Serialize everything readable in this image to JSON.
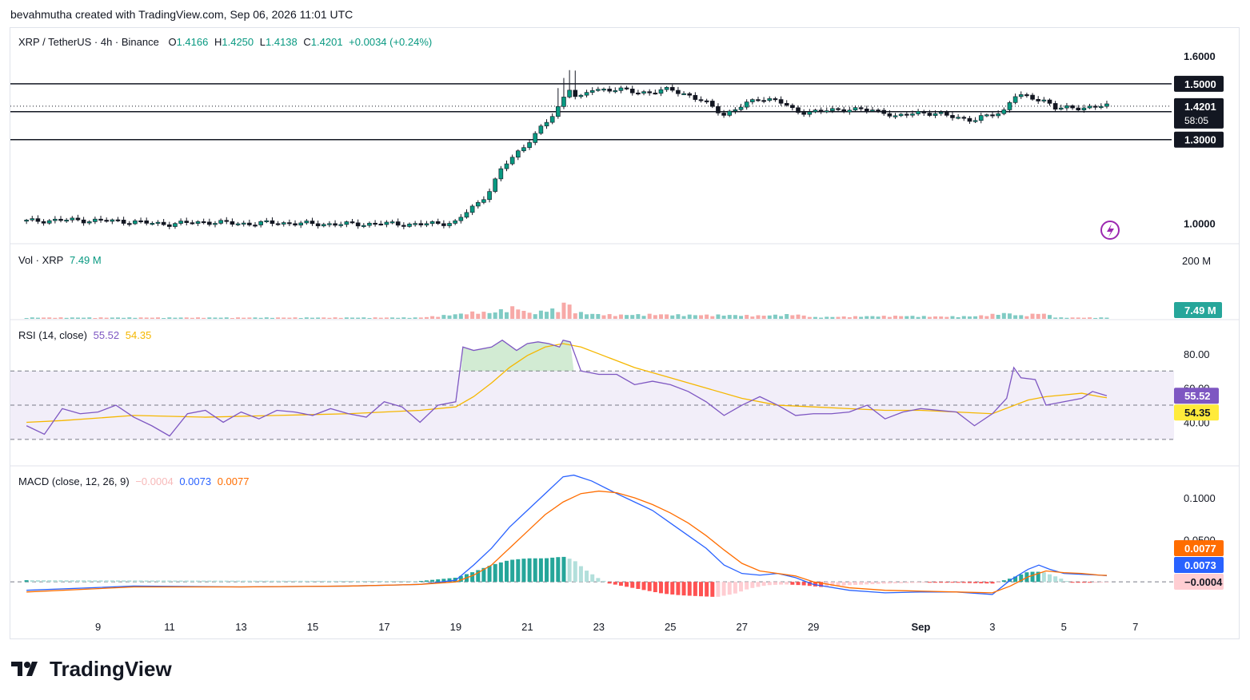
{
  "header": {
    "credit": "bevahmutha created with TradingView.com, Sep 06, 2026 11:01 UTC"
  },
  "legend": {
    "symbol": "XRP / TetherUS · 4h · Binance",
    "o_label": "O",
    "o": "1.4166",
    "h_label": "H",
    "h": "1.4250",
    "l_label": "L",
    "l": "1.4138",
    "c_label": "C",
    "c": "1.4201",
    "change": "+0.0034 (+0.24%)"
  },
  "vol_legend": {
    "label": "Vol · XRP",
    "value": "7.49 M"
  },
  "rsi_legend": {
    "label": "RSI (14, close)",
    "rsi": "55.52",
    "ma": "54.35"
  },
  "macd_legend": {
    "label": "MACD (close, 12, 26, 9)",
    "hist": "−0.0004",
    "macd": "0.0073",
    "signal": "0.0077"
  },
  "price_axis": {
    "ticks": [
      "1.6000",
      "1.0000"
    ],
    "levels": [
      {
        "label": "1.5000",
        "value": 1.5
      },
      {
        "label": "1.4000",
        "value": 1.4
      },
      {
        "label": "1.3000",
        "value": 1.3
      }
    ],
    "last_price": "1.4201",
    "countdown": "58:05"
  },
  "vol_axis": {
    "top": "200 M",
    "last": "7.49 M"
  },
  "rsi_axis": {
    "ticks": [
      "80.00",
      "60.00",
      "40.00"
    ],
    "rsi": "55.52",
    "ma": "54.35"
  },
  "macd_axis": {
    "ticks": [
      "0.1000",
      "0.0500"
    ],
    "signal": "0.0077",
    "macd": "0.0073",
    "hist": "−0.0004"
  },
  "x_axis": {
    "ticks": [
      "9",
      "11",
      "13",
      "15",
      "17",
      "19",
      "21",
      "23",
      "25",
      "27",
      "29",
      "Sep",
      "3",
      "5",
      "7"
    ]
  },
  "chart_data": {
    "type": "candlestick",
    "symbol": "XRP / TetherUS",
    "interval": "4h",
    "exchange": "Binance",
    "price_close_path": [
      [
        7.0,
        1.008
      ],
      [
        8.0,
        1.012
      ],
      [
        9.0,
        1.01
      ],
      [
        10.0,
        1.006
      ],
      [
        10.5,
        1.0
      ],
      [
        11.0,
        0.998
      ],
      [
        12.0,
        1.005
      ],
      [
        13.0,
        0.999
      ],
      [
        14.0,
        1.002
      ],
      [
        15.0,
        0.998
      ],
      [
        16.0,
        0.997
      ],
      [
        17.0,
        0.999
      ],
      [
        18.0,
        0.996
      ],
      [
        19.0,
        1.004
      ],
      [
        19.3,
        1.04
      ],
      [
        19.7,
        1.08
      ],
      [
        20.0,
        1.13
      ],
      [
        20.3,
        1.2
      ],
      [
        20.7,
        1.25
      ],
      [
        21.0,
        1.29
      ],
      [
        21.3,
        1.33
      ],
      [
        21.6,
        1.37
      ],
      [
        21.8,
        1.4
      ],
      [
        22.0,
        1.45
      ],
      [
        22.2,
        1.49
      ],
      [
        22.4,
        1.44
      ],
      [
        22.8,
        1.48
      ],
      [
        23.5,
        1.48
      ],
      [
        24.0,
        1.47
      ],
      [
        24.5,
        1.47
      ],
      [
        25.0,
        1.48
      ],
      [
        25.5,
        1.46
      ],
      [
        26.0,
        1.43
      ],
      [
        26.5,
        1.39
      ],
      [
        27.0,
        1.42
      ],
      [
        27.5,
        1.45
      ],
      [
        28.0,
        1.44
      ],
      [
        28.5,
        1.4
      ],
      [
        29.0,
        1.4
      ],
      [
        30.0,
        1.41
      ],
      [
        31.0,
        1.4
      ],
      [
        31.3,
        1.38
      ],
      [
        32.0,
        1.4
      ],
      [
        32.5,
        1.39
      ],
      [
        33.0,
        1.38
      ],
      [
        33.5,
        1.37
      ],
      [
        34.0,
        1.39
      ],
      [
        34.3,
        1.4
      ],
      [
        34.6,
        1.46
      ],
      [
        35.0,
        1.45
      ],
      [
        35.5,
        1.44
      ],
      [
        35.8,
        1.41
      ],
      [
        36.5,
        1.415
      ],
      [
        37.0,
        1.42
      ],
      [
        37.2,
        1.42
      ]
    ],
    "volume_series": [
      [
        7,
        4
      ],
      [
        18,
        4
      ],
      [
        19.2,
        16
      ],
      [
        19.6,
        22
      ],
      [
        20.0,
        18
      ],
      [
        20.3,
        28
      ],
      [
        20.7,
        37
      ],
      [
        21.0,
        18
      ],
      [
        21.3,
        18
      ],
      [
        21.6,
        34
      ],
      [
        21.9,
        20
      ],
      [
        22.0,
        56
      ],
      [
        22.4,
        20
      ],
      [
        22.8,
        15
      ],
      [
        23.5,
        12
      ],
      [
        24.5,
        14
      ],
      [
        25.5,
        12
      ],
      [
        26.5,
        12
      ],
      [
        27.0,
        11
      ],
      [
        27.5,
        10
      ],
      [
        28.0,
        12
      ],
      [
        28.5,
        14
      ],
      [
        29.0,
        5
      ],
      [
        30.5,
        8
      ],
      [
        31.5,
        9
      ],
      [
        32.5,
        7
      ],
      [
        33.5,
        8
      ],
      [
        34.4,
        18
      ],
      [
        34.8,
        10
      ],
      [
        35.4,
        18
      ],
      [
        35.8,
        4
      ],
      [
        37.2,
        4
      ]
    ],
    "volume_scale_top": 200,
    "rsi_series": [
      [
        7,
        38
      ],
      [
        7.5,
        33
      ],
      [
        8,
        48
      ],
      [
        8.5,
        45
      ],
      [
        9,
        46
      ],
      [
        9.5,
        50
      ],
      [
        10,
        43
      ],
      [
        10.5,
        38
      ],
      [
        11,
        32
      ],
      [
        11.5,
        45
      ],
      [
        12,
        47
      ],
      [
        12.5,
        40
      ],
      [
        13,
        46
      ],
      [
        13.5,
        42
      ],
      [
        14,
        47
      ],
      [
        14.5,
        46
      ],
      [
        15,
        44
      ],
      [
        15.5,
        48
      ],
      [
        16,
        45
      ],
      [
        16.5,
        43
      ],
      [
        17,
        52
      ],
      [
        17.5,
        49
      ],
      [
        18,
        40
      ],
      [
        18.5,
        50
      ],
      [
        19,
        52
      ],
      [
        19.2,
        84
      ],
      [
        19.5,
        82
      ],
      [
        20,
        84
      ],
      [
        20.3,
        88
      ],
      [
        20.7,
        82
      ],
      [
        21,
        86
      ],
      [
        21.3,
        87
      ],
      [
        21.6,
        86
      ],
      [
        21.9,
        84
      ],
      [
        22.0,
        88
      ],
      [
        22.2,
        87
      ],
      [
        22.5,
        70
      ],
      [
        23,
        68
      ],
      [
        23.5,
        68
      ],
      [
        24,
        62
      ],
      [
        24.5,
        64
      ],
      [
        25,
        62
      ],
      [
        25.5,
        58
      ],
      [
        26,
        52
      ],
      [
        26.5,
        44
      ],
      [
        27,
        50
      ],
      [
        27.5,
        55
      ],
      [
        28,
        50
      ],
      [
        28.5,
        44
      ],
      [
        29,
        45
      ],
      [
        29.5,
        45
      ],
      [
        30,
        46
      ],
      [
        30.5,
        50
      ],
      [
        31,
        42
      ],
      [
        31.5,
        46
      ],
      [
        32,
        48
      ],
      [
        32.5,
        47
      ],
      [
        33,
        46
      ],
      [
        33.5,
        38
      ],
      [
        34,
        45
      ],
      [
        34.4,
        54
      ],
      [
        34.6,
        72
      ],
      [
        34.8,
        66
      ],
      [
        35.2,
        65
      ],
      [
        35.5,
        50
      ],
      [
        36,
        52
      ],
      [
        36.5,
        54
      ],
      [
        36.8,
        58
      ],
      [
        37.2,
        55.52
      ]
    ],
    "rsi_ma_series": [
      [
        7,
        40
      ],
      [
        8,
        41
      ],
      [
        10,
        44
      ],
      [
        12,
        43
      ],
      [
        14,
        44
      ],
      [
        16,
        45
      ],
      [
        18,
        47
      ],
      [
        19,
        49
      ],
      [
        19.5,
        55
      ],
      [
        20,
        63
      ],
      [
        20.5,
        72
      ],
      [
        21,
        79
      ],
      [
        21.5,
        84
      ],
      [
        22,
        86
      ],
      [
        22.5,
        84
      ],
      [
        23,
        80
      ],
      [
        23.5,
        76
      ],
      [
        24,
        72
      ],
      [
        25,
        66
      ],
      [
        26,
        60
      ],
      [
        27,
        54
      ],
      [
        28,
        50
      ],
      [
        29,
        49
      ],
      [
        30,
        48
      ],
      [
        31,
        47
      ],
      [
        32,
        47
      ],
      [
        33,
        46
      ],
      [
        34,
        45
      ],
      [
        34.5,
        49
      ],
      [
        35,
        53
      ],
      [
        35.5,
        55
      ],
      [
        36,
        56
      ],
      [
        36.5,
        57
      ],
      [
        37,
        55
      ],
      [
        37.2,
        54.35
      ]
    ],
    "rsi_band": {
      "upper": 70,
      "middle": 50,
      "lower": 30
    },
    "macd_series": [
      [
        7,
        -0.01
      ],
      [
        10,
        -0.005
      ],
      [
        13,
        -0.006
      ],
      [
        16,
        -0.005
      ],
      [
        18,
        -0.003
      ],
      [
        19,
        0.002
      ],
      [
        19.5,
        0.02
      ],
      [
        20,
        0.04
      ],
      [
        20.5,
        0.065
      ],
      [
        21,
        0.085
      ],
      [
        21.5,
        0.105
      ],
      [
        22,
        0.125
      ],
      [
        22.3,
        0.127
      ],
      [
        22.8,
        0.12
      ],
      [
        23.5,
        0.105
      ],
      [
        24,
        0.095
      ],
      [
        24.5,
        0.085
      ],
      [
        25,
        0.07
      ],
      [
        25.5,
        0.055
      ],
      [
        26,
        0.04
      ],
      [
        26.5,
        0.02
      ],
      [
        27,
        0.01
      ],
      [
        27.5,
        0.008
      ],
      [
        28,
        0.01
      ],
      [
        28.5,
        0.005
      ],
      [
        29,
        -0.003
      ],
      [
        30,
        -0.01
      ],
      [
        31,
        -0.013
      ],
      [
        32,
        -0.012
      ],
      [
        33,
        -0.012
      ],
      [
        34,
        -0.015
      ],
      [
        34.5,
        0.002
      ],
      [
        35,
        0.015
      ],
      [
        35.3,
        0.02
      ],
      [
        35.6,
        0.015
      ],
      [
        36,
        0.01
      ],
      [
        36.5,
        0.009
      ],
      [
        37,
        0.008
      ],
      [
        37.2,
        0.0073
      ]
    ],
    "signal_series": [
      [
        7,
        -0.012
      ],
      [
        10,
        -0.006
      ],
      [
        13,
        -0.006
      ],
      [
        16,
        -0.005
      ],
      [
        18,
        -0.003
      ],
      [
        19,
        0.0
      ],
      [
        19.5,
        0.008
      ],
      [
        20,
        0.02
      ],
      [
        20.5,
        0.04
      ],
      [
        21,
        0.06
      ],
      [
        21.5,
        0.08
      ],
      [
        22,
        0.095
      ],
      [
        22.5,
        0.105
      ],
      [
        23,
        0.108
      ],
      [
        23.5,
        0.106
      ],
      [
        24,
        0.1
      ],
      [
        24.5,
        0.092
      ],
      [
        25,
        0.082
      ],
      [
        25.5,
        0.07
      ],
      [
        26,
        0.055
      ],
      [
        26.5,
        0.038
      ],
      [
        27,
        0.022
      ],
      [
        27.5,
        0.013
      ],
      [
        28,
        0.01
      ],
      [
        28.5,
        0.007
      ],
      [
        29,
        0.0
      ],
      [
        30,
        -0.007
      ],
      [
        31,
        -0.01
      ],
      [
        32,
        -0.011
      ],
      [
        33,
        -0.012
      ],
      [
        34,
        -0.013
      ],
      [
        34.5,
        -0.005
      ],
      [
        35,
        0.006
      ],
      [
        35.5,
        0.013
      ],
      [
        36,
        0.011
      ],
      [
        36.5,
        0.01
      ],
      [
        37,
        0.008
      ],
      [
        37.2,
        0.0077
      ]
    ],
    "macd_hist_series": [
      [
        7,
        0.002
      ],
      [
        18,
        0.001
      ],
      [
        19,
        0.005
      ],
      [
        19.5,
        0.012
      ],
      [
        20,
        0.02
      ],
      [
        20.5,
        0.026
      ],
      [
        21,
        0.028
      ],
      [
        21.5,
        0.028
      ],
      [
        22,
        0.03
      ],
      [
        22.3,
        0.026
      ],
      [
        22.6,
        0.015
      ],
      [
        23,
        0.004
      ],
      [
        23.3,
        -0.002
      ],
      [
        23.8,
        -0.006
      ],
      [
        24.3,
        -0.01
      ],
      [
        24.8,
        -0.014
      ],
      [
        25.3,
        -0.016
      ],
      [
        25.8,
        -0.017
      ],
      [
        26.3,
        -0.018
      ],
      [
        26.8,
        -0.014
      ],
      [
        27.2,
        -0.008
      ],
      [
        27.7,
        -0.004
      ],
      [
        28.2,
        -0.003
      ],
      [
        28.7,
        -0.004
      ],
      [
        29.2,
        -0.006
      ],
      [
        30,
        -0.004
      ],
      [
        31,
        -0.002
      ],
      [
        32,
        -0.001
      ],
      [
        33,
        -0.001
      ],
      [
        34,
        -0.002
      ],
      [
        34.5,
        0.004
      ],
      [
        35,
        0.012
      ],
      [
        35.4,
        0.012
      ],
      [
        35.8,
        0.006
      ],
      [
        36.2,
        -0.001
      ],
      [
        36.8,
        -0.001
      ],
      [
        37.2,
        -0.0004
      ]
    ],
    "x_range": [
      6.55,
      38.9
    ],
    "price_range": [
      0.93,
      1.7
    ],
    "rsi_range": [
      15,
      100
    ],
    "macd_range": [
      -0.035,
      0.138
    ]
  }
}
